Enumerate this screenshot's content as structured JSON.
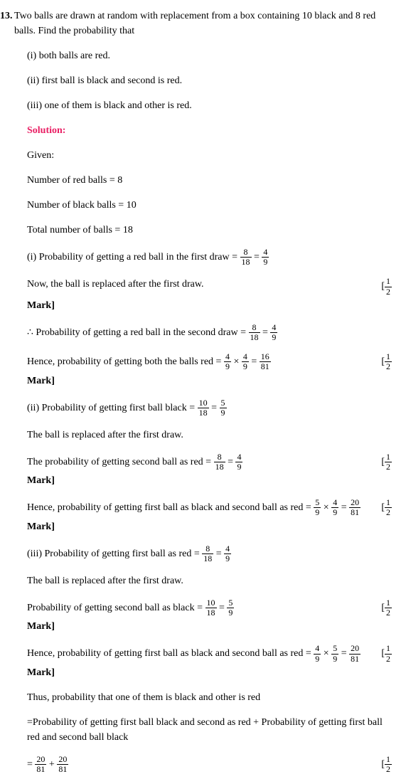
{
  "question": {
    "number": "13.",
    "stem": "Two balls are drawn at random with replacement from a box containing 10 black and 8 red balls. Find the probability that",
    "parts": {
      "i": "(i) both balls are red.",
      "ii": "(ii) first ball is black and second is red.",
      "iii": "(iii) one of them is black and other is red."
    }
  },
  "solution_label": "Solution:",
  "given_label": "Given:",
  "given": {
    "red": "Number of red balls = 8",
    "black": "Number of black balls = 10",
    "total": "Total number of balls = 18"
  },
  "f": {
    "n8": "8",
    "d18": "18",
    "n4": "4",
    "d9": "9",
    "n10": "10",
    "n5": "5",
    "n16": "16",
    "d81": "81",
    "n20": "20",
    "n1": "1",
    "d2": "2"
  },
  "lines": {
    "i1_pre": "(i) Probability of getting a red ball in the first draw = ",
    "i2": "Now, the ball is replaced after the first draw.",
    "i3_pre": "∴ Probability of getting a red ball in the second draw = ",
    "i4_pre": "Hence, probability of getting both the balls red = ",
    "ii1_pre": "(ii) Probability of getting first ball black = ",
    "ii2": "The ball is replaced after the first draw.",
    "ii3_pre": "The probability of getting second ball as red = ",
    "ii4_pre": "Hence, probability of getting first ball as black and second ball as red = ",
    "iii1_pre": "(iii) Probability of getting first ball as red = ",
    "iii2": "The ball is replaced after the first draw.",
    "iii3_pre": "Probability of getting second ball as black = ",
    "iii4_pre": "Hence, probability of getting first ball as black and second ball as red = ",
    "thus": "Thus, probability that one of them is black and other is red",
    "sum_desc": "=Probability of getting first ball black and second as red + Probability of getting first ball red and second ball black",
    "eq": " = ",
    "times": " × ",
    "plus": " + "
  },
  "mark": {
    "label": "Mark]",
    "bracket": "["
  }
}
